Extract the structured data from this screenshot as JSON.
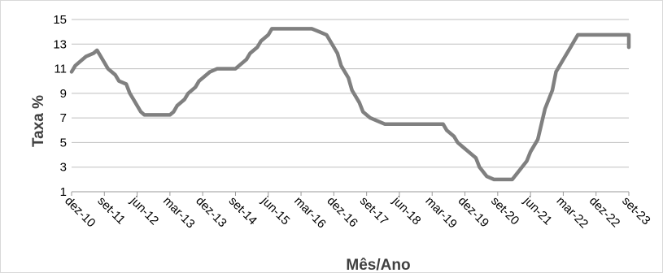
{
  "chart_data": {
    "type": "line",
    "title": "",
    "xlabel": "Mês/Ano",
    "ylabel": "Taxa %",
    "ylim": [
      1,
      15
    ],
    "yticks": [
      1,
      3,
      5,
      7,
      9,
      11,
      13,
      15
    ],
    "grid": "horizontal",
    "legend": "none",
    "x_tick_labels": [
      "dez-10",
      "set-11",
      "jun-12",
      "mar-13",
      "dez-13",
      "set-14",
      "jun-15",
      "mar-16",
      "dez-16",
      "set-17",
      "jun-18",
      "mar-19",
      "dez-19",
      "set-20",
      "jun-21",
      "mar-22",
      "dez-22",
      "set-23"
    ],
    "series": [
      {
        "color": "#808080",
        "x": [
          "dez-10",
          "jan-11",
          "mar-11",
          "abr-11",
          "jun-11",
          "jul-11",
          "ago-11",
          "set-11",
          "out-11",
          "dez-11",
          "jan-12",
          "mar-12",
          "abr-12",
          "mai-12",
          "jun-12",
          "jul-12",
          "ago-12",
          "out-12",
          "mar-13",
          "abr-13",
          "mai-13",
          "jul-13",
          "ago-13",
          "out-13",
          "nov-13",
          "jan-14",
          "fev-14",
          "abr-14",
          "set-14",
          "out-14",
          "dez-14",
          "jan-15",
          "mar-15",
          "abr-15",
          "jun-15",
          "jul-15",
          "set-15",
          "jun-16",
          "ago-16",
          "out-16",
          "nov-16",
          "dez-16",
          "jan-17",
          "fev-17",
          "abr-17",
          "mai-17",
          "jul-17",
          "ago-17",
          "out-17",
          "dez-17",
          "fev-18",
          "mar-18",
          "jun-19",
          "jul-19",
          "set-19",
          "out-19",
          "dez-19",
          "jan-20",
          "mar-20",
          "abr-20",
          "jun-20",
          "ago-20",
          "set-20",
          "out-20",
          "jan-21",
          "mar-21",
          "mai-21",
          "jun-21",
          "ago-21",
          "out-21",
          "dez-21",
          "jan-22",
          "mar-22",
          "mai-22",
          "jun-22",
          "jul-22",
          "ago-22",
          "set-23",
          "out-23",
          "dez-23"
        ],
        "values": [
          10.75,
          11.25,
          11.75,
          12.0,
          12.25,
          12.5,
          12.0,
          11.5,
          11.0,
          10.5,
          10.0,
          9.75,
          9.0,
          8.5,
          8.0,
          7.5,
          7.25,
          7.25,
          7.25,
          7.5,
          8.0,
          8.5,
          9.0,
          9.5,
          10.0,
          10.5,
          10.75,
          11.0,
          11.0,
          11.25,
          11.75,
          12.25,
          12.75,
          13.25,
          13.75,
          14.25,
          14.25,
          14.25,
          14.0,
          13.75,
          13.25,
          12.75,
          12.25,
          11.25,
          10.25,
          9.25,
          8.25,
          7.5,
          7.0,
          6.75,
          6.5,
          6.5,
          6.5,
          6.0,
          5.5,
          5.0,
          4.5,
          4.25,
          3.75,
          3.0,
          2.25,
          2.0,
          2.0,
          2.0,
          2.0,
          2.75,
          3.5,
          4.25,
          5.25,
          7.75,
          9.25,
          10.75,
          11.75,
          12.75,
          13.25,
          13.75,
          13.75,
          13.75,
          13.25,
          12.75
        ]
      }
    ]
  }
}
